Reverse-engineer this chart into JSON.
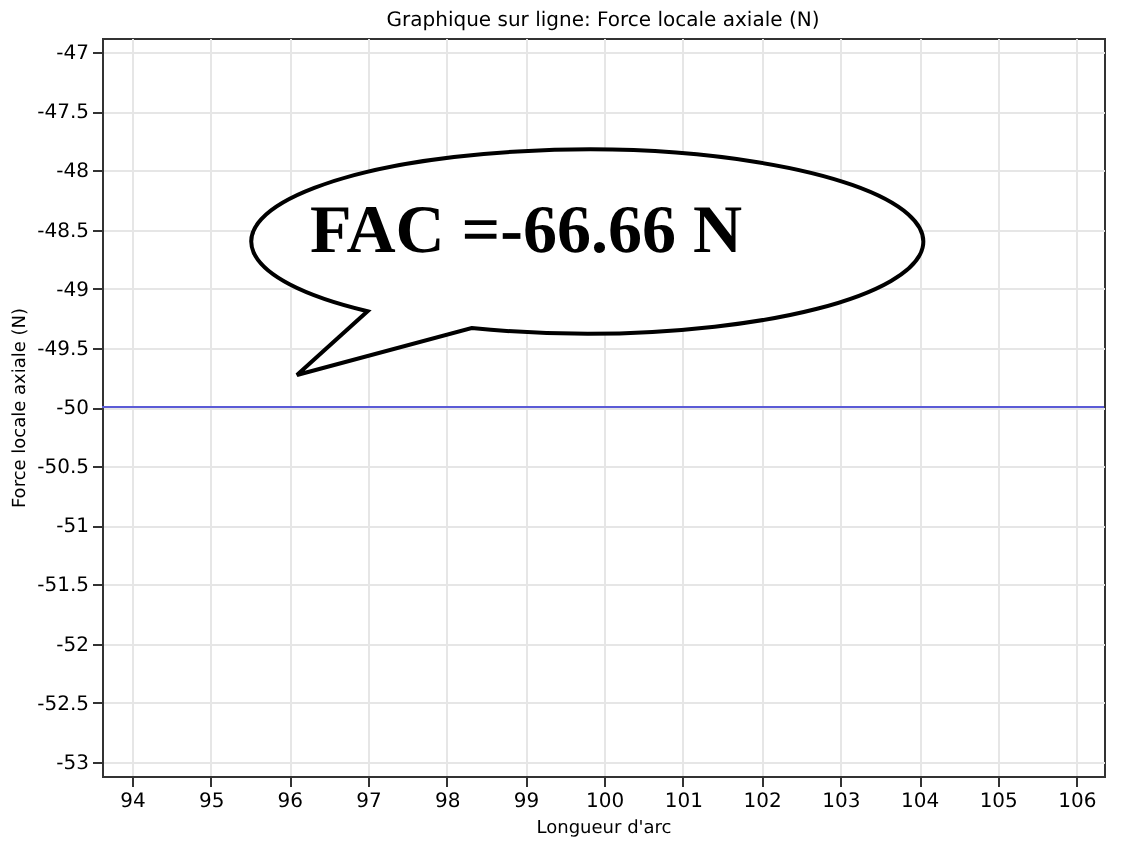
{
  "chart_data": {
    "type": "line",
    "title": "Graphique sur ligne: Force locale axiale (N)",
    "xlabel": "Longueur d'arc",
    "ylabel": "Force locale axiale (N)",
    "x": [
      93.62,
      106.35
    ],
    "series": [
      {
        "color": "#5b5bd6",
        "values": [
          -50,
          -50
        ]
      }
    ],
    "xlim": [
      93.62,
      106.35
    ],
    "xticks": [
      94,
      95,
      96,
      97,
      98,
      99,
      100,
      101,
      102,
      103,
      104,
      105,
      106
    ],
    "ylim": [
      -53.12,
      -46.88
    ],
    "yticks": [
      -53,
      -52.5,
      -52,
      -51.5,
      -51,
      -50.5,
      -50,
      -49.5,
      -49,
      -48.5,
      -48,
      -47.5,
      -47
    ],
    "grid": true,
    "marker": "none",
    "line_style": "solid",
    "annotations": [
      "FAC =-66.66 N"
    ]
  }
}
